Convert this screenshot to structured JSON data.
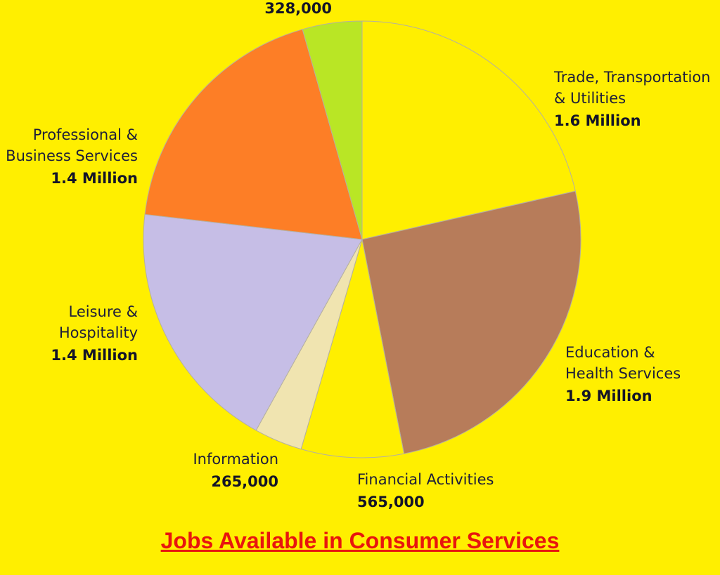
{
  "chart_data": {
    "type": "pie",
    "title": "Jobs Available in Consumer Services",
    "start_angle_deg": 0,
    "direction": "clockwise",
    "slices": [
      {
        "label": "Trade, Transportation & Utilities",
        "label_lines": [
          "Trade, Transportation",
          "& Utilities"
        ],
        "value_text": "1.6 Million",
        "value": 1600000,
        "color": "#ffef00"
      },
      {
        "label": "Education & Health Services",
        "label_lines": [
          "Education &",
          "Health Services"
        ],
        "value_text": "1.9 Million",
        "value": 1900000,
        "color": "#b77c5a"
      },
      {
        "label": "Financial Activities",
        "label_lines": [
          "Financial Activities"
        ],
        "value_text": "565,000",
        "value": 565000,
        "color": "#ffef00"
      },
      {
        "label": "Information",
        "label_lines": [
          "Information"
        ],
        "value_text": "265,000",
        "value": 265000,
        "color": "#f0e4b0"
      },
      {
        "label": "Leisure & Hospitality",
        "label_lines": [
          "Leisure &",
          "Hospitality"
        ],
        "value_text": "1.4 Million",
        "value": 1400000,
        "color": "#c6bee6"
      },
      {
        "label": "Professional & Business Services",
        "label_lines": [
          "Professional &",
          "Business Services"
        ],
        "value_text": "1.4 Million",
        "value": 1400000,
        "color": "#fd7e26"
      },
      {
        "label": "",
        "label_lines": [],
        "value_text": "328,000",
        "value": 328000,
        "color": "#b9e625"
      }
    ]
  }
}
